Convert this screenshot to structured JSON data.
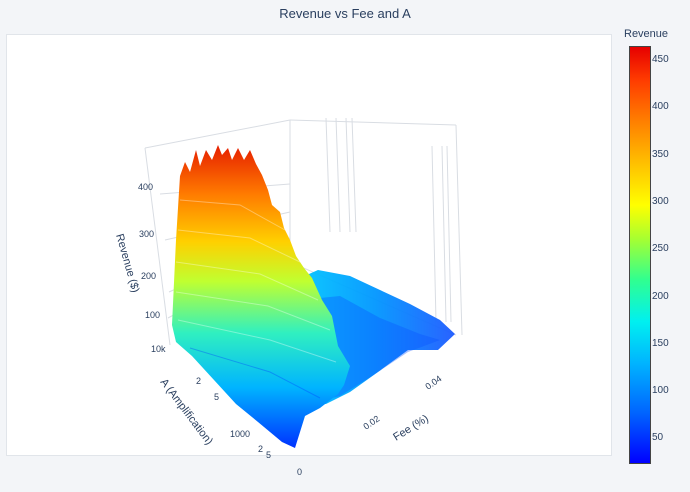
{
  "chart_data": {
    "type": "surface",
    "title": "Revenue vs Fee and A",
    "x_axis": {
      "label": "Fee (%)",
      "ticks": [
        "0",
        "0.02",
        "0.04"
      ],
      "range": [
        0,
        0.05
      ]
    },
    "y_axis": {
      "label": "A (Amplification)",
      "scale": "log",
      "ticks": [
        "1000",
        "10k"
      ],
      "minor_ticks": [
        "2",
        "5",
        "2",
        "5"
      ],
      "range": [
        100,
        10000
      ]
    },
    "z_axis": {
      "label": "Revenue ($)",
      "ticks": [
        "100",
        "200",
        "300",
        "400"
      ],
      "range": [
        20,
        470
      ]
    },
    "colorbar": {
      "title": "Revenue",
      "ticks": [
        "50",
        "100",
        "150",
        "200",
        "250",
        "300",
        "350",
        "400",
        "450"
      ],
      "range": [
        25,
        465
      ],
      "colorscale": "jet"
    },
    "surface_samples": {
      "fee": [
        0.0,
        0.01,
        0.02,
        0.03,
        0.04,
        0.05
      ],
      "A": [
        100,
        1000,
        10000
      ],
      "revenue": [
        [
          40,
          30,
          28,
          26,
          25,
          25
        ],
        [
          160,
          110,
          75,
          50,
          40,
          35
        ],
        [
          450,
          300,
          150,
          80,
          60,
          50
        ]
      ]
    }
  }
}
